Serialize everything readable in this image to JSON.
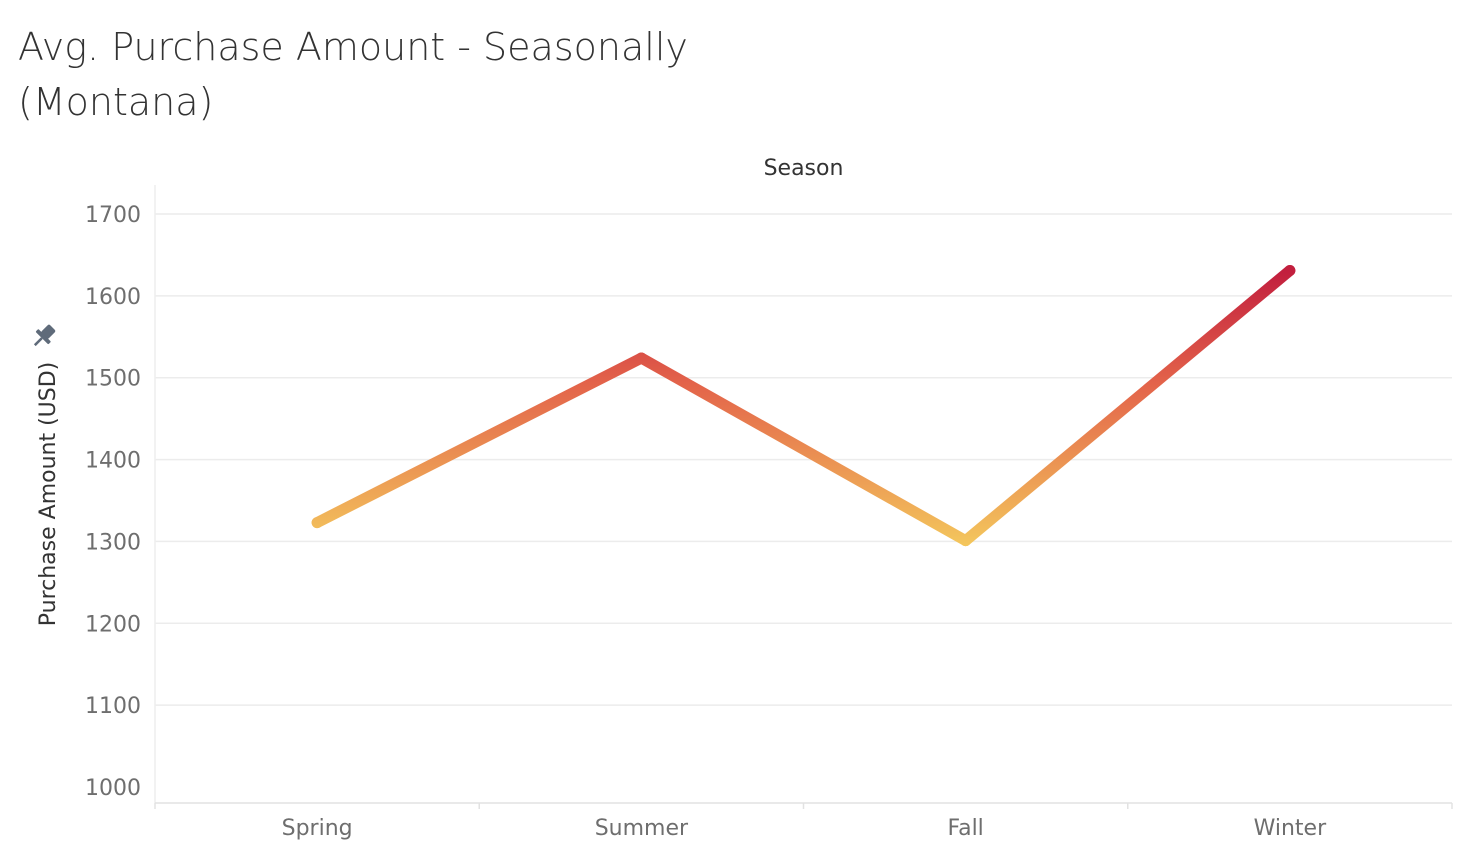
{
  "title": "Avg. Purchase Amount - Seasonally (Montana)",
  "chart_data": {
    "type": "line",
    "title": "Avg. Purchase Amount - Seasonally (Montana)",
    "column_header": "Season",
    "xlabel": "",
    "ylabel": "Purchase Amount (USD)",
    "categories": [
      "Spring",
      "Summer",
      "Fall",
      "Winter"
    ],
    "values": [
      1323,
      1524,
      1301,
      1631
    ],
    "ylim": [
      1000,
      1700
    ],
    "yticks": [
      1000,
      1100,
      1200,
      1300,
      1400,
      1500,
      1600,
      1700
    ],
    "grid": true,
    "color_gradient": [
      "#f4c95d",
      "#e3634a",
      "#c21f3e"
    ]
  }
}
